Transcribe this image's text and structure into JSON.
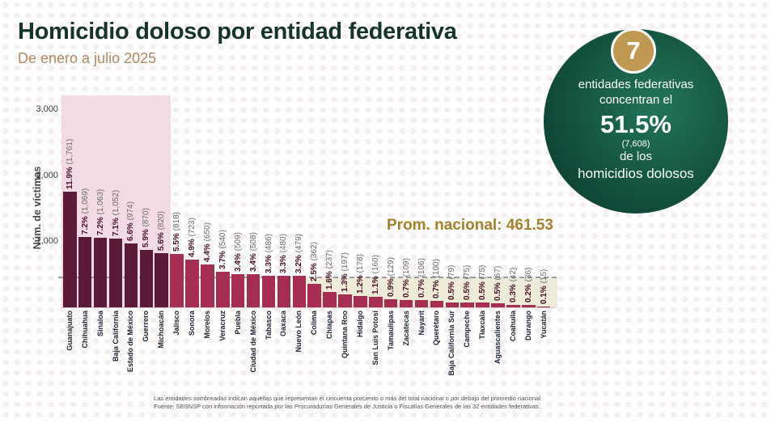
{
  "page": {
    "title": "Homicidio doloso por entidad federativa",
    "subtitle": "De enero a julio 2025"
  },
  "infographic": {
    "count": "7",
    "line1": "entidades federativas",
    "line2": "concentran el",
    "pct": "51.5%",
    "total": "(7,608)",
    "line3": "de los",
    "line4": "homicidios dolosos"
  },
  "footnote": {
    "line1": "Las entidades sombreadas indican aquellas que representan el cincuenta porciento o más del total nacional o por debajo del promedio nacional.",
    "line2": "Fuente: SESNSP con información reportada por las Procuradurías Generales de Justicia o Fiscalías Generales de las 32 entidades federativas.."
  },
  "chart_data": {
    "type": "bar",
    "title": "Homicidio doloso por entidad federativa",
    "subtitle": "De enero a julio 2025",
    "ylabel": "Núm. de víctimas",
    "ylim": [
      0,
      3200
    ],
    "grid": false,
    "yticks": [
      {
        "value": 1000,
        "label": "1,000"
      },
      {
        "value": 2000,
        "label": "2,000"
      },
      {
        "value": 3000,
        "label": "3,000"
      }
    ],
    "average_line": {
      "value": 461.53,
      "label": "Prom. nacional: 461.53"
    },
    "categories": [
      "Guanajuato",
      "Chihuahua",
      "Sinaloa",
      "Baja California",
      "Estado de México",
      "Guerrero",
      "Michoacán",
      "Jalisco",
      "Sonora",
      "Morelos",
      "Veracruz",
      "Puebla",
      "Ciudad de México",
      "Tabasco",
      "Oaxaca",
      "Nuevo León",
      "Colima",
      "Chiapas",
      "Quintana Roo",
      "Hidalgo",
      "San Luis Potosí",
      "Tamaulipas",
      "Zacatecas",
      "Nayarit",
      "Querétaro",
      "Baja California Sur",
      "Campeche",
      "Tlaxcala",
      "Aguascalientes",
      "Coahuila",
      "Durango",
      "Yucatán"
    ],
    "values": [
      1761,
      1069,
      1063,
      1052,
      974,
      870,
      820,
      818,
      723,
      650,
      540,
      509,
      508,
      486,
      480,
      479,
      362,
      237,
      197,
      178,
      160,
      129,
      109,
      106,
      100,
      79,
      75,
      75,
      67,
      42,
      36,
      15
    ],
    "pct_labels": [
      "11.9%",
      "7.2%",
      "7.2%",
      "7.1%",
      "6.6%",
      "5.9%",
      "5.6%",
      "5.5%",
      "4.9%",
      "4.4%",
      "3.7%",
      "3.4%",
      "3.4%",
      "3.3%",
      "3.3%",
      "3.2%",
      "2.5%",
      "1.6%",
      "1.3%",
      "1.2%",
      "1.1%",
      "0.9%",
      "0.7%",
      "0.7%",
      "0.7%",
      "0.5%",
      "0.5%",
      "0.5%",
      "0.5%",
      "0.3%",
      "0.2%",
      "0.1%"
    ],
    "count_labels": [
      "(1,761)",
      "(1,069)",
      "(1,063)",
      "(1,052)",
      "(974)",
      "(870)",
      "(820)",
      "(818)",
      "(723)",
      "(650)",
      "(540)",
      "(509)",
      "(508)",
      "(486)",
      "(480)",
      "(479)",
      "(362)",
      "(237)",
      "(197)",
      "(178)",
      "(160)",
      "(129)",
      "(109)",
      "(106)",
      "(100)",
      "(79)",
      "(75)",
      "(75)",
      "(67)",
      "(42)",
      "(36)",
      "(15)"
    ],
    "shading": {
      "top_concentrators_n": 7,
      "below_average_from_index": 16
    },
    "colors": {
      "bar_dark": "#5c1a39",
      "bar_light": "#a52e52",
      "band_pink": "#f3dbe5",
      "band_beige": "#eeebd9",
      "avg_line": "#9b9b9b",
      "pct_text": "#471129",
      "count_text": "#6a6a6a",
      "accent_gold": "#a3812c",
      "title_green": "#17342c",
      "subtitle_tan": "#ae8a64",
      "circle_green_dark": "#0a362b",
      "circle_green_light": "#22745a",
      "badge_gold": "#bf9851"
    }
  }
}
